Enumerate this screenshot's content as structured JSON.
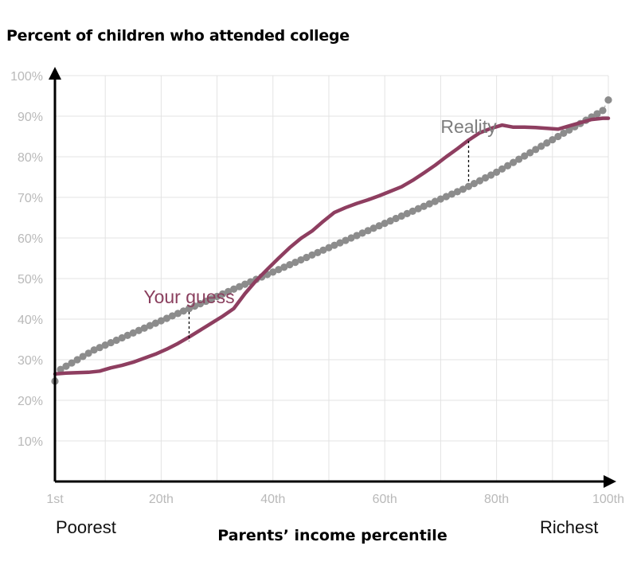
{
  "chart_data": {
    "type": "line",
    "title": "Percent of children who attended college",
    "xlabel": "Parents’ income percentile",
    "ylabel": "",
    "x_end_labels": {
      "left": "Poorest",
      "right": "Richest"
    },
    "xlim": [
      1,
      100
    ],
    "ylim": [
      0,
      100
    ],
    "x_ticks": [
      {
        "value": 1,
        "label": "1st"
      },
      {
        "value": 20,
        "label": "20th"
      },
      {
        "value": 40,
        "label": "40th"
      },
      {
        "value": 60,
        "label": "60th"
      },
      {
        "value": 80,
        "label": "80th"
      },
      {
        "value": 100,
        "label": "100th"
      }
    ],
    "y_ticks": [
      {
        "value": 10,
        "label": "10%"
      },
      {
        "value": 20,
        "label": "20%"
      },
      {
        "value": 30,
        "label": "30%"
      },
      {
        "value": 40,
        "label": "40%"
      },
      {
        "value": 50,
        "label": "50%"
      },
      {
        "value": 60,
        "label": "60%"
      },
      {
        "value": 70,
        "label": "70%"
      },
      {
        "value": 80,
        "label": "80%"
      },
      {
        "value": 90,
        "label": "90%"
      },
      {
        "value": 100,
        "label": "100%"
      }
    ],
    "grid": true,
    "series": [
      {
        "name": "Reality",
        "style": "dots",
        "color": "#8c8c8c",
        "x": [
          1,
          2,
          3,
          4,
          5,
          6,
          7,
          8,
          9,
          10,
          11,
          12,
          13,
          14,
          15,
          16,
          17,
          18,
          19,
          20,
          21,
          22,
          23,
          24,
          25,
          26,
          27,
          28,
          29,
          30,
          31,
          32,
          33,
          34,
          35,
          36,
          37,
          38,
          39,
          40,
          41,
          42,
          43,
          44,
          45,
          46,
          47,
          48,
          49,
          50,
          51,
          52,
          53,
          54,
          55,
          56,
          57,
          58,
          59,
          60,
          61,
          62,
          63,
          64,
          65,
          66,
          67,
          68,
          69,
          70,
          71,
          72,
          73,
          74,
          75,
          76,
          77,
          78,
          79,
          80,
          81,
          82,
          83,
          84,
          85,
          86,
          87,
          88,
          89,
          90,
          91,
          92,
          93,
          94,
          95,
          96,
          97,
          98,
          99,
          100
        ],
        "values": [
          24.7,
          27.6,
          28.4,
          29.2,
          30.0,
          30.8,
          31.6,
          32.4,
          33.0,
          33.6,
          34.2,
          34.8,
          35.4,
          36.0,
          36.6,
          37.2,
          37.8,
          38.4,
          39.0,
          39.6,
          40.2,
          40.8,
          41.4,
          42.0,
          42.6,
          43.2,
          43.8,
          44.4,
          45.0,
          45.6,
          46.2,
          46.8,
          47.4,
          48.0,
          48.6,
          49.2,
          49.8,
          50.4,
          51.0,
          51.6,
          52.2,
          52.8,
          53.4,
          54.0,
          54.6,
          55.2,
          55.8,
          56.4,
          57.0,
          57.6,
          58.2,
          58.8,
          59.4,
          60.0,
          60.6,
          61.2,
          61.8,
          62.4,
          63.0,
          63.6,
          64.2,
          64.8,
          65.4,
          66.0,
          66.6,
          67.2,
          67.8,
          68.4,
          69.0,
          69.6,
          70.2,
          70.8,
          71.4,
          72.0,
          72.7,
          73.4,
          74.1,
          74.8,
          75.5,
          76.2,
          77.0,
          77.8,
          78.6,
          79.4,
          80.2,
          81.0,
          81.8,
          82.6,
          83.4,
          84.2,
          85.0,
          85.8,
          86.6,
          87.4,
          88.2,
          89.0,
          89.8,
          90.6,
          91.4,
          94.0
        ]
      },
      {
        "name": "Your guess",
        "style": "line",
        "color": "#8e3e60",
        "x": [
          1,
          3,
          5,
          7,
          9,
          11,
          13,
          15,
          17,
          19,
          21,
          23,
          25,
          27,
          29,
          31,
          33,
          35,
          37,
          39,
          41,
          43,
          45,
          47,
          49,
          51,
          53,
          55,
          57,
          59,
          61,
          63,
          65,
          67,
          69,
          71,
          73,
          75,
          77,
          79,
          81,
          83,
          85,
          87,
          89,
          91,
          93,
          95,
          97,
          99,
          100
        ],
        "values": [
          26.5,
          26.7,
          26.8,
          26.9,
          27.2,
          28.0,
          28.6,
          29.4,
          30.4,
          31.4,
          32.6,
          34.0,
          35.6,
          37.3,
          39.0,
          40.7,
          42.6,
          46.3,
          49.5,
          52.3,
          55.0,
          57.6,
          59.9,
          61.7,
          64.1,
          66.3,
          67.5,
          68.5,
          69.4,
          70.4,
          71.5,
          72.6,
          74.2,
          76.0,
          77.9,
          80.0,
          82.0,
          84.1,
          85.9,
          87.0,
          87.8,
          87.3,
          87.3,
          87.2,
          87.0,
          86.8,
          87.6,
          88.4,
          89.2,
          89.5,
          89.5
        ]
      }
    ],
    "annotations": [
      {
        "text": "Reality",
        "series": "Reality",
        "at_x": 75
      },
      {
        "text": "Your guess",
        "series": "Your guess",
        "at_x": 25
      }
    ]
  }
}
